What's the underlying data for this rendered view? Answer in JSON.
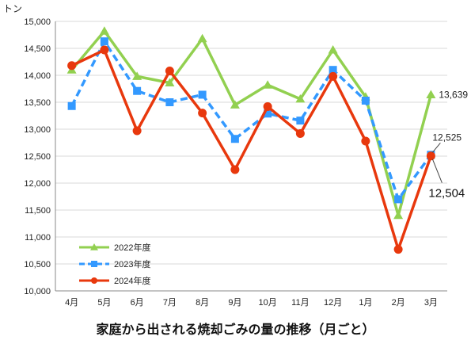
{
  "chart_data": {
    "type": "line",
    "title": "家庭から出される焼却ごみの量の推移（月ごと）",
    "ylabel": "トン",
    "xlabel": "",
    "ylim": [
      10000,
      15000
    ],
    "yticks": [
      "10,000",
      "10,500",
      "11,000",
      "11,500",
      "12,000",
      "12,500",
      "13,000",
      "13,500",
      "14,000",
      "14,500",
      "15,000"
    ],
    "categories": [
      "4月",
      "5月",
      "6月",
      "7月",
      "8月",
      "9月",
      "10月",
      "11月",
      "12月",
      "1月",
      "2月",
      "3月"
    ],
    "grid": "horizontal",
    "legend_position": "bottom-left",
    "series": [
      {
        "name": "2022年度",
        "color": "#92d050",
        "style": "solid",
        "marker": "triangle",
        "values": [
          14100,
          14820,
          13980,
          13860,
          14680,
          13450,
          13820,
          13560,
          14470,
          13600,
          11400,
          13639
        ]
      },
      {
        "name": "2023年度",
        "color": "#3399ff",
        "style": "dashed",
        "marker": "square",
        "values": [
          13430,
          14630,
          13710,
          13500,
          13640,
          12820,
          13290,
          13160,
          14100,
          13530,
          11700,
          12525
        ]
      },
      {
        "name": "2024年度",
        "color": "#e8380d",
        "style": "solid",
        "marker": "circle",
        "values": [
          14180,
          14470,
          12970,
          14080,
          13300,
          12250,
          13420,
          12920,
          13980,
          12780,
          10770,
          12504
        ]
      }
    ],
    "annotations": [
      {
        "series": "2022年度",
        "index": 11,
        "text": "13,639"
      },
      {
        "series": "2023年度",
        "index": 11,
        "text": "12,525"
      },
      {
        "series": "2024年度",
        "index": 11,
        "text": "12,504"
      }
    ]
  }
}
